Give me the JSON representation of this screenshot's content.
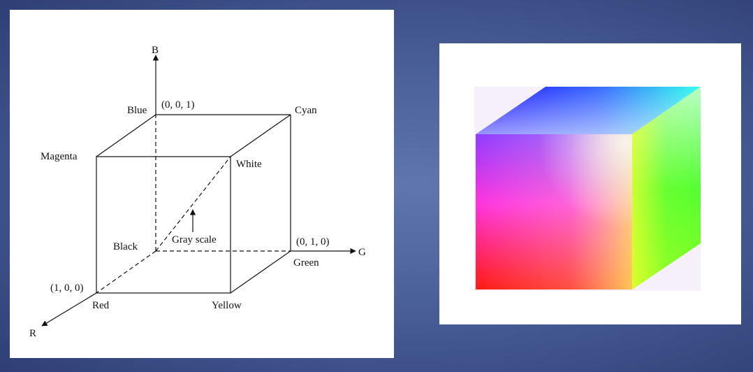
{
  "diagram": {
    "axes": {
      "b": "B",
      "g": "G",
      "r": "R"
    },
    "vertices": {
      "blue": "Blue",
      "blue_coord": "(0, 0, 1)",
      "cyan": "Cyan",
      "magenta": "Magenta",
      "white": "White",
      "black": "Black",
      "gray_scale": "Gray scale",
      "green_coord": "(0, 1, 0)",
      "green": "Green",
      "red_coord": "(1, 0, 0)",
      "red": "Red",
      "yellow": "Yellow"
    }
  },
  "colors": {
    "background_mid": "#5f77ad",
    "background_edge": "#2f3f75",
    "panel": "#ffffff"
  }
}
